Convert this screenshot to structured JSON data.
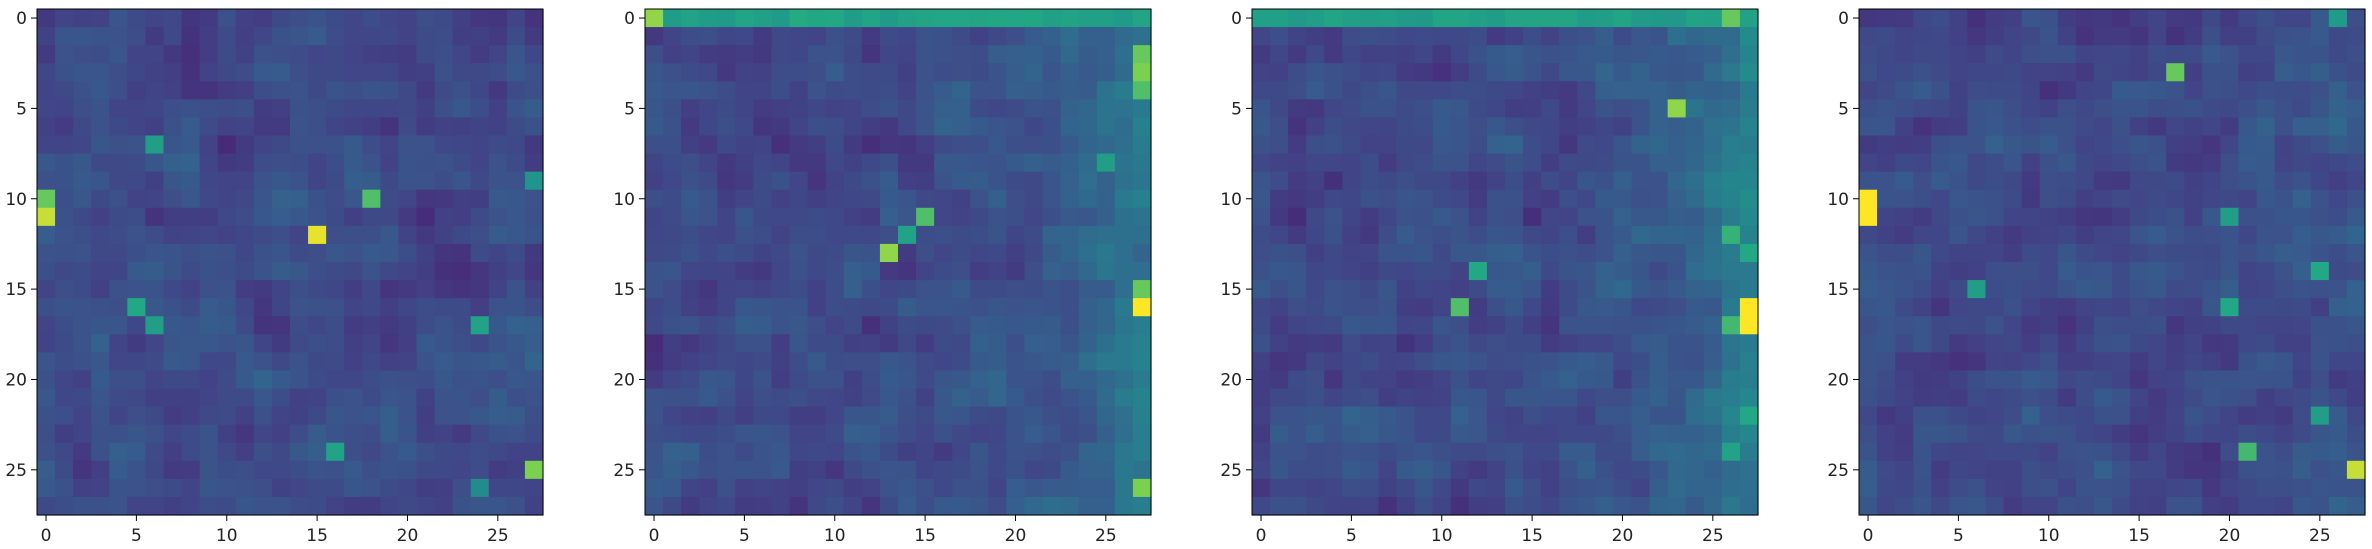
{
  "chart_data": [
    {
      "type": "heatmap",
      "rows": 28,
      "cols": 28,
      "colormap": "viridis",
      "seed": 11,
      "hotspots": [
        [
          11,
          0,
          0.95
        ],
        [
          10,
          0,
          0.85
        ],
        [
          12,
          15,
          0.98
        ],
        [
          10,
          18,
          0.82
        ],
        [
          25,
          27,
          0.88
        ],
        [
          16,
          5,
          0.75
        ],
        [
          17,
          6,
          0.7
        ],
        [
          24,
          16,
          0.72
        ],
        [
          17,
          24,
          0.72
        ],
        [
          7,
          6,
          0.7
        ],
        [
          9,
          27,
          0.65
        ],
        [
          26,
          24,
          0.6
        ]
      ],
      "top_row": null,
      "right_bias": 0,
      "xticks": [
        0,
        5,
        10,
        15,
        20,
        25
      ],
      "yticks": [
        0,
        5,
        10,
        15,
        20,
        25
      ],
      "xlim": [
        -0.5,
        27.5
      ],
      "ylim": [
        27.5,
        -0.5
      ]
    },
    {
      "type": "heatmap",
      "rows": 28,
      "cols": 28,
      "colormap": "viridis",
      "seed": 23,
      "hotspots": [
        [
          0,
          0,
          0.9
        ],
        [
          16,
          27,
          1.0
        ],
        [
          2,
          27,
          0.85
        ],
        [
          3,
          27,
          0.88
        ],
        [
          4,
          27,
          0.82
        ],
        [
          15,
          27,
          0.85
        ],
        [
          26,
          27,
          0.88
        ],
        [
          13,
          13,
          0.9
        ],
        [
          11,
          15,
          0.82
        ],
        [
          8,
          25,
          0.7
        ],
        [
          12,
          14,
          0.72
        ]
      ],
      "top_row": 0.72,
      "right_bias": 0.25,
      "xticks": [
        0,
        5,
        10,
        15,
        20,
        25
      ],
      "yticks": [
        0,
        5,
        10,
        15,
        20,
        25
      ],
      "xlim": [
        -0.5,
        27.5
      ],
      "ylim": [
        27.5,
        -0.5
      ]
    },
    {
      "type": "heatmap",
      "rows": 28,
      "cols": 28,
      "colormap": "viridis",
      "seed": 37,
      "hotspots": [
        [
          16,
          27,
          1.0
        ],
        [
          17,
          27,
          1.0
        ],
        [
          5,
          23,
          0.9
        ],
        [
          0,
          26,
          0.85
        ],
        [
          16,
          11,
          0.82
        ],
        [
          14,
          12,
          0.75
        ],
        [
          12,
          26,
          0.78
        ],
        [
          13,
          27,
          0.75
        ],
        [
          22,
          27,
          0.75
        ],
        [
          24,
          26,
          0.72
        ],
        [
          17,
          26,
          0.8
        ]
      ],
      "top_row": 0.7,
      "right_bias": 0.25,
      "xticks": [
        0,
        5,
        10,
        15,
        20,
        25
      ],
      "yticks": [
        0,
        5,
        10,
        15,
        20,
        25
      ],
      "xlim": [
        -0.5,
        27.5
      ],
      "ylim": [
        27.5,
        -0.5
      ]
    },
    {
      "type": "heatmap",
      "rows": 28,
      "cols": 28,
      "colormap": "viridis",
      "seed": 53,
      "hotspots": [
        [
          10,
          0,
          1.0
        ],
        [
          11,
          0,
          1.0
        ],
        [
          25,
          27,
          0.95
        ],
        [
          3,
          17,
          0.85
        ],
        [
          24,
          21,
          0.8
        ],
        [
          14,
          25,
          0.75
        ],
        [
          16,
          20,
          0.75
        ],
        [
          22,
          25,
          0.7
        ],
        [
          11,
          20,
          0.7
        ],
        [
          0,
          26,
          0.68
        ],
        [
          15,
          6,
          0.7
        ]
      ],
      "top_row": null,
      "right_bias": 0.05,
      "xticks": [
        0,
        5,
        10,
        15,
        20,
        25
      ],
      "yticks": [
        0,
        5,
        10,
        15,
        20,
        25
      ],
      "xlim": [
        -0.5,
        27.5
      ],
      "ylim": [
        27.5,
        -0.5
      ]
    }
  ]
}
